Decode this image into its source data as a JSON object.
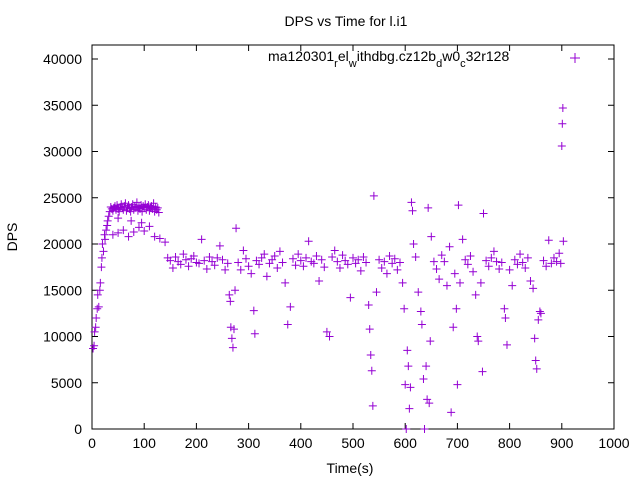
{
  "chart_data": {
    "type": "scatter",
    "title": "DPS vs Time for l.i1",
    "xlabel": "Time(s)",
    "ylabel": "DPS",
    "xlim": [
      0,
      1000
    ],
    "ylim": [
      0,
      42000
    ],
    "xticks": [
      0,
      100,
      200,
      300,
      400,
      500,
      600,
      700,
      800,
      900,
      1000
    ],
    "yticks": [
      0,
      5000,
      10000,
      15000,
      20000,
      25000,
      30000,
      35000,
      40000
    ],
    "grid": false,
    "legend_position": "top-right",
    "series": [
      {
        "name": "ma120301_rel_withdbg.cz12b_dw0_c32r128",
        "legend_parts": [
          "ma120301",
          "r",
          "el",
          "w",
          "ithdbg.cz12b",
          "d",
          "w0",
          "c",
          "32r128"
        ],
        "color": "#9400d3",
        "marker": "+",
        "points": [
          [
            2,
            8700
          ],
          [
            4,
            9000
          ],
          [
            5,
            10500
          ],
          [
            7,
            11000
          ],
          [
            8,
            12000
          ],
          [
            10,
            13000
          ],
          [
            11,
            14500
          ],
          [
            13,
            13200
          ],
          [
            15,
            15000
          ],
          [
            16,
            15800
          ],
          [
            18,
            17500
          ],
          [
            19,
            18500
          ],
          [
            20,
            20000
          ],
          [
            22,
            19200
          ],
          [
            24,
            21000
          ],
          [
            25,
            20500
          ],
          [
            27,
            21500
          ],
          [
            29,
            22000
          ],
          [
            30,
            22500
          ],
          [
            32,
            23000
          ],
          [
            34,
            23500
          ],
          [
            36,
            24000
          ],
          [
            38,
            23800
          ],
          [
            40,
            23600
          ],
          [
            42,
            23900
          ],
          [
            44,
            24100
          ],
          [
            46,
            23700
          ],
          [
            48,
            24200
          ],
          [
            50,
            23800
          ],
          [
            52,
            23500
          ],
          [
            54,
            24000
          ],
          [
            56,
            24300
          ],
          [
            58,
            23900
          ],
          [
            60,
            23700
          ],
          [
            62,
            24100
          ],
          [
            64,
            24400
          ],
          [
            66,
            23600
          ],
          [
            68,
            23900
          ],
          [
            70,
            24200
          ],
          [
            72,
            23800
          ],
          [
            74,
            23500
          ],
          [
            76,
            24000
          ],
          [
            78,
            24300
          ],
          [
            80,
            23700
          ],
          [
            82,
            24100
          ],
          [
            84,
            23900
          ],
          [
            86,
            24500
          ],
          [
            88,
            23600
          ],
          [
            90,
            24000
          ],
          [
            92,
            23800
          ],
          [
            94,
            24200
          ],
          [
            96,
            23500
          ],
          [
            98,
            24100
          ],
          [
            100,
            23900
          ],
          [
            102,
            24300
          ],
          [
            104,
            23700
          ],
          [
            106,
            24000
          ],
          [
            108,
            24200
          ],
          [
            110,
            23600
          ],
          [
            112,
            23900
          ],
          [
            114,
            24100
          ],
          [
            116,
            23800
          ],
          [
            118,
            24400
          ],
          [
            120,
            23500
          ],
          [
            122,
            24000
          ],
          [
            124,
            23700
          ],
          [
            126,
            23900
          ],
          [
            128,
            23400
          ],
          [
            40,
            21000
          ],
          [
            50,
            21200
          ],
          [
            60,
            21500
          ],
          [
            70,
            20800
          ],
          [
            80,
            21300
          ],
          [
            90,
            21800
          ],
          [
            100,
            21400
          ],
          [
            110,
            21900
          ],
          [
            120,
            20800
          ],
          [
            130,
            20600
          ],
          [
            50,
            22800
          ],
          [
            75,
            22500
          ],
          [
            95,
            22300
          ],
          [
            140,
            20200
          ],
          [
            145,
            18500
          ],
          [
            150,
            18200
          ],
          [
            155,
            17400
          ],
          [
            160,
            18600
          ],
          [
            165,
            18100
          ],
          [
            170,
            17800
          ],
          [
            175,
            18900
          ],
          [
            180,
            18300
          ],
          [
            185,
            17600
          ],
          [
            190,
            18400
          ],
          [
            195,
            18700
          ],
          [
            200,
            18000
          ],
          [
            205,
            17900
          ],
          [
            210,
            20500
          ],
          [
            215,
            18200
          ],
          [
            220,
            17300
          ],
          [
            225,
            18600
          ],
          [
            230,
            18100
          ],
          [
            235,
            17700
          ],
          [
            240,
            18500
          ],
          [
            245,
            19800
          ],
          [
            250,
            18300
          ],
          [
            255,
            17200
          ],
          [
            260,
            17900
          ],
          [
            263,
            14500
          ],
          [
            265,
            13800
          ],
          [
            266,
            11000
          ],
          [
            268,
            9800
          ],
          [
            270,
            8800
          ],
          [
            272,
            10800
          ],
          [
            274,
            15000
          ],
          [
            276,
            21700
          ],
          [
            280,
            18000
          ],
          [
            285,
            17200
          ],
          [
            290,
            19300
          ],
          [
            295,
            18400
          ],
          [
            300,
            17600
          ],
          [
            305,
            16800
          ],
          [
            310,
            12800
          ],
          [
            312,
            10300
          ],
          [
            315,
            18200
          ],
          [
            320,
            17800
          ],
          [
            325,
            18500
          ],
          [
            330,
            18900
          ],
          [
            335,
            16500
          ],
          [
            340,
            17900
          ],
          [
            345,
            18300
          ],
          [
            350,
            18700
          ],
          [
            355,
            17400
          ],
          [
            360,
            19200
          ],
          [
            365,
            18000
          ],
          [
            370,
            15800
          ],
          [
            375,
            11300
          ],
          [
            380,
            13200
          ],
          [
            385,
            18400
          ],
          [
            390,
            17700
          ],
          [
            395,
            18900
          ],
          [
            400,
            18200
          ],
          [
            405,
            17600
          ],
          [
            410,
            18500
          ],
          [
            415,
            20300
          ],
          [
            420,
            18100
          ],
          [
            425,
            17900
          ],
          [
            430,
            18700
          ],
          [
            435,
            16000
          ],
          [
            440,
            18300
          ],
          [
            445,
            17500
          ],
          [
            450,
            10500
          ],
          [
            455,
            10000
          ],
          [
            460,
            18600
          ],
          [
            465,
            19300
          ],
          [
            470,
            18100
          ],
          [
            475,
            17400
          ],
          [
            480,
            18800
          ],
          [
            485,
            18200
          ],
          [
            490,
            17800
          ],
          [
            495,
            14200
          ],
          [
            500,
            18500
          ],
          [
            505,
            17900
          ],
          [
            510,
            18300
          ],
          [
            515,
            17100
          ],
          [
            520,
            18600
          ],
          [
            525,
            18000
          ],
          [
            530,
            13400
          ],
          [
            532,
            10800
          ],
          [
            534,
            8000
          ],
          [
            536,
            6300
          ],
          [
            538,
            2500
          ],
          [
            540,
            25200
          ],
          [
            545,
            14800
          ],
          [
            550,
            18300
          ],
          [
            555,
            17400
          ],
          [
            560,
            18100
          ],
          [
            565,
            16800
          ],
          [
            570,
            18700
          ],
          [
            575,
            17900
          ],
          [
            580,
            18400
          ],
          [
            585,
            17200
          ],
          [
            590,
            18000
          ],
          [
            595,
            15800
          ],
          [
            598,
            13000
          ],
          [
            600,
            4800
          ],
          [
            602,
            0
          ],
          [
            604,
            8500
          ],
          [
            606,
            6800
          ],
          [
            608,
            2200
          ],
          [
            610,
            4500
          ],
          [
            612,
            24500
          ],
          [
            614,
            23600
          ],
          [
            616,
            20000
          ],
          [
            620,
            18600
          ],
          [
            625,
            14800
          ],
          [
            630,
            12700
          ],
          [
            632,
            11300
          ],
          [
            635,
            5400
          ],
          [
            637,
            0
          ],
          [
            640,
            6800
          ],
          [
            642,
            3200
          ],
          [
            644,
            23900
          ],
          [
            646,
            2800
          ],
          [
            648,
            9500
          ],
          [
            650,
            20800
          ],
          [
            655,
            18100
          ],
          [
            660,
            17300
          ],
          [
            665,
            16200
          ],
          [
            670,
            18800
          ],
          [
            675,
            18100
          ],
          [
            680,
            15500
          ],
          [
            685,
            19700
          ],
          [
            688,
            1800
          ],
          [
            692,
            11000
          ],
          [
            695,
            16800
          ],
          [
            698,
            13000
          ],
          [
            700,
            4800
          ],
          [
            702,
            24200
          ],
          [
            705,
            15800
          ],
          [
            710,
            20500
          ],
          [
            715,
            18300
          ],
          [
            720,
            17800
          ],
          [
            725,
            18700
          ],
          [
            730,
            17000
          ],
          [
            735,
            14500
          ],
          [
            738,
            10000
          ],
          [
            740,
            9500
          ],
          [
            745,
            15800
          ],
          [
            748,
            6200
          ],
          [
            750,
            23300
          ],
          [
            755,
            18200
          ],
          [
            760,
            17600
          ],
          [
            765,
            18500
          ],
          [
            770,
            19200
          ],
          [
            775,
            18100
          ],
          [
            780,
            17300
          ],
          [
            785,
            18000
          ],
          [
            790,
            13000
          ],
          [
            792,
            12000
          ],
          [
            795,
            9100
          ],
          [
            800,
            17200
          ],
          [
            805,
            15500
          ],
          [
            810,
            18300
          ],
          [
            815,
            17800
          ],
          [
            820,
            18900
          ],
          [
            825,
            18000
          ],
          [
            830,
            17400
          ],
          [
            835,
            18500
          ],
          [
            840,
            16000
          ],
          [
            845,
            15200
          ],
          [
            848,
            9800
          ],
          [
            850,
            7400
          ],
          [
            852,
            6500
          ],
          [
            855,
            11800
          ],
          [
            858,
            12700
          ],
          [
            860,
            12500
          ],
          [
            865,
            18200
          ],
          [
            870,
            17600
          ],
          [
            875,
            20400
          ],
          [
            880,
            17900
          ],
          [
            885,
            18500
          ],
          [
            890,
            18100
          ],
          [
            895,
            19000
          ],
          [
            900,
            30600
          ],
          [
            901,
            33000
          ],
          [
            902,
            34700
          ],
          [
            903,
            20300
          ],
          [
            898,
            17900
          ]
        ]
      }
    ]
  }
}
